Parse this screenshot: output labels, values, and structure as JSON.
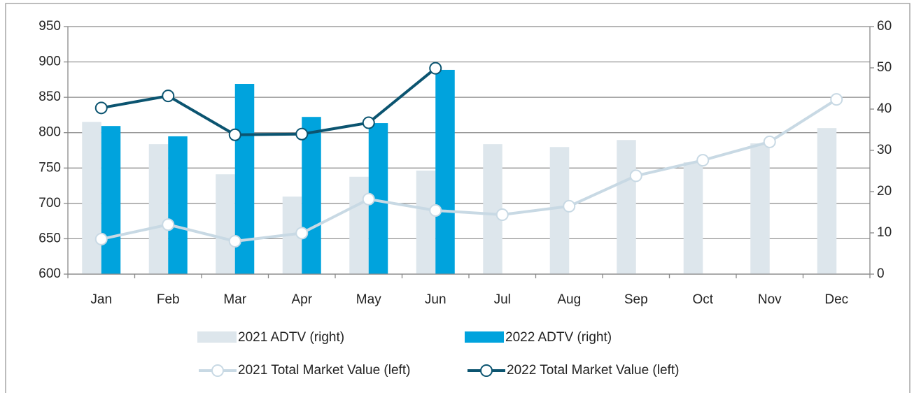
{
  "chart_data": {
    "type": "bar",
    "categories": [
      "Jan",
      "Feb",
      "Mar",
      "Apr",
      "May",
      "Jun",
      "Jul",
      "Aug",
      "Sep",
      "Oct",
      "Nov",
      "Dec"
    ],
    "ylim": [
      600,
      950
    ],
    "yticks": [
      600,
      650,
      700,
      750,
      800,
      850,
      900,
      950
    ],
    "y2lim": [
      0,
      60
    ],
    "y2ticks": [
      0,
      10,
      20,
      30,
      40,
      50,
      60
    ],
    "grid": true,
    "series": [
      {
        "name": "2021 ADTV (right)",
        "type": "bar",
        "axis": "y2",
        "color": "#dde6ec",
        "values": [
          36.9,
          31.5,
          24.2,
          18.8,
          23.6,
          25.1,
          31.5,
          30.8,
          32.5,
          27.1,
          31.7,
          35.4
        ]
      },
      {
        "name": "2022 ADTV (right)",
        "type": "bar",
        "axis": "y2",
        "color": "#00a3dd",
        "values": [
          35.9,
          33.4,
          46.1,
          38.1,
          36.6,
          49.5,
          null,
          null,
          null,
          null,
          null,
          null
        ]
      },
      {
        "name": "2021 Total Market Value (left)",
        "type": "line",
        "color": "#c8d9e4",
        "values": [
          649.5,
          670,
          646.5,
          658,
          706,
          690,
          684,
          696,
          739,
          761,
          787,
          847
        ]
      },
      {
        "name": "2022 Total Market Value (left)",
        "type": "line",
        "color": "#0b5470",
        "values": [
          835,
          852,
          797,
          798,
          814,
          891,
          null,
          null,
          null,
          null,
          null,
          null
        ]
      }
    ]
  }
}
